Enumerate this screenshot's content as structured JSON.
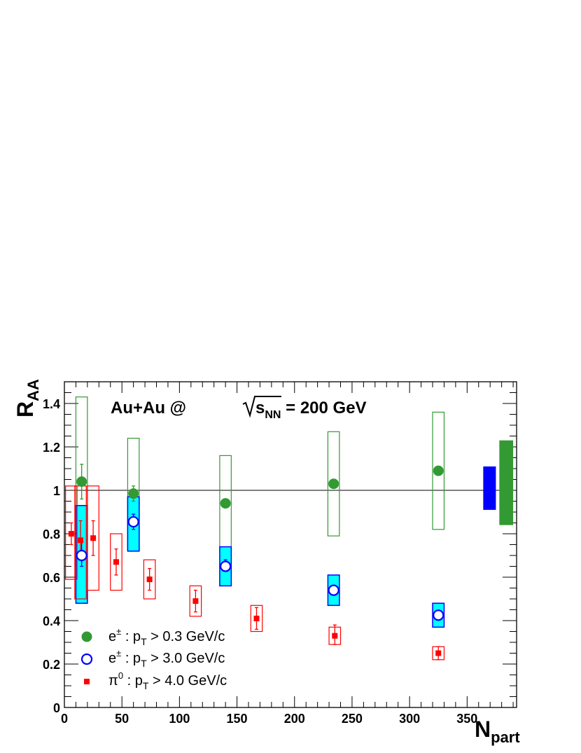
{
  "chart_data": {
    "type": "scatter",
    "title": "Au+Au @ √sNN = 200 GeV",
    "title_parts": {
      "prefix": "Au+Au @ ",
      "sqrt_s": "s",
      "sub": "NN",
      "suffix": " = 200 GeV"
    },
    "xlabel": {
      "main": "N",
      "sub": "part"
    },
    "ylabel": {
      "main": "R",
      "sub": "AA"
    },
    "xlim": [
      0,
      393
    ],
    "ylim": [
      0,
      1.5
    ],
    "x_ticks": [
      0,
      50,
      100,
      150,
      200,
      250,
      300,
      350
    ],
    "y_ticks": [
      0,
      0.2,
      0.4,
      0.6,
      0.8,
      1,
      1.2,
      1.4
    ],
    "y_tick_labels": [
      "0",
      "0.2",
      "0.4",
      "0.6",
      "0.8",
      "1",
      "1.2",
      "1.4"
    ],
    "reference_line": 1.0,
    "grid": false,
    "legend_position": "bottom-left",
    "series": [
      {
        "name": "e± : pT > 0.3 GeV/c",
        "legend": {
          "p1": "e",
          "sup": "±",
          "p2": " : p",
          "sub": "T",
          "p3": " > 0.3 GeV/c"
        },
        "marker": "filled-circle",
        "color": "#339933",
        "sys_style": "open-box",
        "points": [
          {
            "x": 15,
            "y": 1.04,
            "stat": [
              0.96,
              1.12
            ],
            "sys": [
              0.65,
              1.43
            ],
            "sys_w": 10
          },
          {
            "x": 60,
            "y": 0.985,
            "stat": [
              0.95,
              1.02
            ],
            "sys": [
              0.73,
              1.24
            ],
            "sys_w": 10
          },
          {
            "x": 140,
            "y": 0.94,
            "stat": [
              0.93,
              0.95
            ],
            "sys": [
              0.73,
              1.16
            ],
            "sys_w": 10
          },
          {
            "x": 234,
            "y": 1.03,
            "stat": [
              1.02,
              1.04
            ],
            "sys": [
              0.79,
              1.27
            ],
            "sys_w": 10
          },
          {
            "x": 325,
            "y": 1.09,
            "stat": [
              1.08,
              1.1
            ],
            "sys": [
              0.82,
              1.36
            ],
            "sys_w": 10
          }
        ]
      },
      {
        "name": "e± : pT > 3.0 GeV/c",
        "legend": {
          "p1": "e",
          "sup": "±",
          "p2": " : p",
          "sub": "T",
          "p3": " > 3.0 GeV/c"
        },
        "marker": "open-circle",
        "color": "#0000ff",
        "sys_fill": "#00ffff",
        "sys_style": "filled-box",
        "points": [
          {
            "x": 15,
            "y": 0.7,
            "stat": [
              0.65,
              0.76
            ],
            "sys": [
              0.48,
              0.93
            ],
            "sys_w": 10
          },
          {
            "x": 60,
            "y": 0.855,
            "stat": [
              0.82,
              0.89
            ],
            "sys": [
              0.72,
              0.97
            ],
            "sys_w": 10
          },
          {
            "x": 140,
            "y": 0.65,
            "stat": [
              0.63,
              0.68
            ],
            "sys": [
              0.56,
              0.74
            ],
            "sys_w": 10
          },
          {
            "x": 234,
            "y": 0.54,
            "stat": [
              0.53,
              0.55
            ],
            "sys": [
              0.47,
              0.61
            ],
            "sys_w": 10
          },
          {
            "x": 325,
            "y": 0.425,
            "stat": [
              0.42,
              0.43
            ],
            "sys": [
              0.37,
              0.48
            ],
            "sys_w": 10
          }
        ]
      },
      {
        "name": "π0 : pT > 4.0 GeV/c",
        "legend": {
          "p1": "π",
          "sup": "0",
          "p2": " : p",
          "sub": "T",
          "p3": " > 4.0 GeV/c"
        },
        "marker": "filled-square",
        "color": "#ff0000",
        "sys_style": "open-box",
        "points": [
          {
            "x": 6,
            "y": 0.8,
            "stat": [
              0.75,
              0.85
            ],
            "sys": [
              0.59,
              1.02
            ],
            "sys_w": 10
          },
          {
            "x": 14,
            "y": 0.77,
            "stat": [
              0.68,
              0.86
            ],
            "sys": [
              0.5,
              1.02
            ],
            "sys_w": 10
          },
          {
            "x": 25,
            "y": 0.78,
            "stat": [
              0.7,
              0.86
            ],
            "sys": [
              0.54,
              1.02
            ],
            "sys_w": 10
          },
          {
            "x": 45,
            "y": 0.67,
            "stat": [
              0.61,
              0.73
            ],
            "sys": [
              0.54,
              0.8
            ],
            "sys_w": 10
          },
          {
            "x": 74,
            "y": 0.59,
            "stat": [
              0.54,
              0.64
            ],
            "sys": [
              0.5,
              0.68
            ],
            "sys_w": 10
          },
          {
            "x": 114,
            "y": 0.49,
            "stat": [
              0.44,
              0.54
            ],
            "sys": [
              0.42,
              0.56
            ],
            "sys_w": 10
          },
          {
            "x": 167,
            "y": 0.41,
            "stat": [
              0.36,
              0.46
            ],
            "sys": [
              0.35,
              0.47
            ],
            "sys_w": 10
          },
          {
            "x": 235,
            "y": 0.33,
            "stat": [
              0.29,
              0.38
            ],
            "sys": [
              0.29,
              0.37
            ],
            "sys_w": 10
          },
          {
            "x": 325,
            "y": 0.25,
            "stat": [
              0.22,
              0.28
            ],
            "sys": [
              0.22,
              0.28
            ],
            "sys_w": 10
          }
        ]
      }
    ],
    "normalization_boxes": [
      {
        "name": "e± : pT > 3.0 GeV/c",
        "color": "#0000ff",
        "x0": 364,
        "x1": 375,
        "y0": 0.91,
        "y1": 1.11
      },
      {
        "name": "e± : pT > 0.3 GeV/c",
        "color": "#339933",
        "x0": 378,
        "x1": 390,
        "y0": 0.84,
        "y1": 1.23
      }
    ]
  }
}
